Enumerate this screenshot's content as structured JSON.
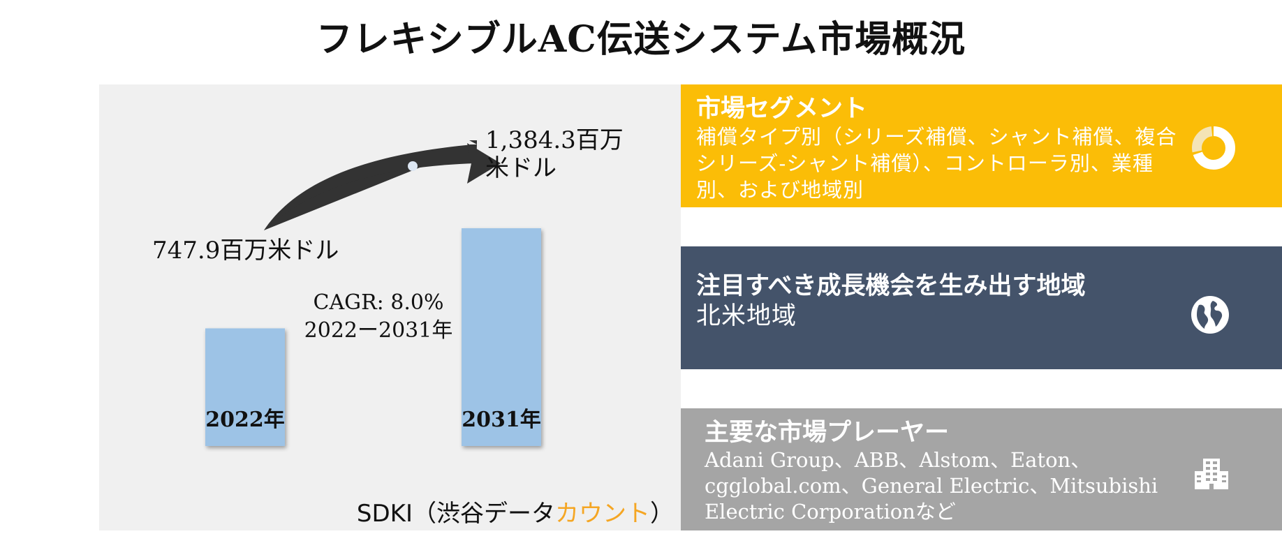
{
  "title": "フレキシブルAC伝送システム市場概況",
  "chart_data": {
    "type": "bar",
    "categories": [
      "2022年",
      "2031年"
    ],
    "values": [
      747.9,
      1384.3
    ],
    "value_labels": [
      "747.9百万米ドル",
      "1,384.3百万米ドル"
    ],
    "cagr_line1": "CAGR: 8.0%",
    "cagr_line2": "2022ー2031年",
    "colors": {
      "bar": "#9dc3e6",
      "arrow": "#333333",
      "panel": "#f0f0f0"
    }
  },
  "source": {
    "prefix": "SDKI（渋谷データ",
    "accent": "カウント",
    "suffix": "）"
  },
  "segments": {
    "title": "市場セグメント",
    "body": "補償タイプ別（シリーズ補償、シャント補償、複合シリーズ-シャント補償）、コントローラ別、業種別、および地域別",
    "icon": "donut-chart-icon",
    "color": "#fbbd07"
  },
  "region": {
    "title": "注目すべき成長機会を生み出す地域",
    "body": "北米地域",
    "icon": "globe-icon",
    "color": "#44536a"
  },
  "players": {
    "title": "主要な市場プレーヤー",
    "body": "Adani Group、ABB、Alstom、Eaton、cgglobal.com、General Electric、Mitsubishi Electric Corporationなど",
    "icon": "building-icon",
    "color": "#a5a5a5"
  }
}
